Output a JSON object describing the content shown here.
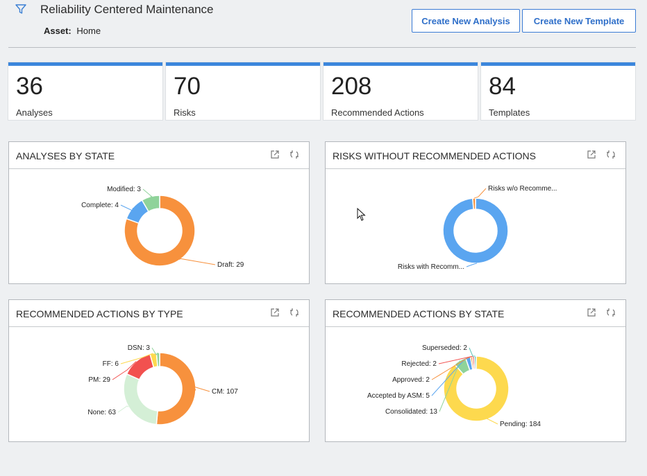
{
  "header": {
    "title": "Reliability Centered Maintenance",
    "asset_label": "Asset:",
    "asset_value": "Home",
    "create_analysis_label": "Create New Analysis",
    "create_template_label": "Create New Template"
  },
  "kpis": [
    {
      "value": "36",
      "label": "Analyses"
    },
    {
      "value": "70",
      "label": "Risks"
    },
    {
      "value": "208",
      "label": "Recommended Actions"
    },
    {
      "value": "84",
      "label": "Templates"
    }
  ],
  "colors": {
    "accent": "#3b86dc",
    "orange": "#f7913d",
    "blue": "#5aa5f0",
    "green": "#8fd39a",
    "red": "#f2514f",
    "yellow": "#fdd94e",
    "lightgreen": "#d4efd6",
    "teal": "#5cc2b6"
  },
  "chart_data": [
    {
      "type": "pie",
      "title": "ANALYSES BY STATE",
      "slices": [
        {
          "name": "Draft",
          "value": 29,
          "color": "#f7913d",
          "label": "Draft: 29"
        },
        {
          "name": "Complete",
          "value": 4,
          "color": "#5aa5f0",
          "label": "Complete: 4"
        },
        {
          "name": "Modified",
          "value": 3,
          "color": "#8fd39a",
          "label": "Modified: 3"
        }
      ]
    },
    {
      "type": "pie",
      "title": "RISKS WITHOUT RECOMMENDED ACTIONS",
      "slices": [
        {
          "name": "Risks with Recomm...",
          "value": 69,
          "color": "#5aa5f0",
          "label": "Risks with Recomm..."
        },
        {
          "name": "Risks w/o Recomme...",
          "value": 1,
          "color": "#f7913d",
          "label": "Risks w/o Recomme..."
        }
      ]
    },
    {
      "type": "pie",
      "title": "RECOMMENDED ACTIONS BY TYPE",
      "slices": [
        {
          "name": "CM",
          "value": 107,
          "color": "#f7913d",
          "label": "CM: 107"
        },
        {
          "name": "None",
          "value": 63,
          "color": "#d4efd6",
          "label": "None: 63"
        },
        {
          "name": "PM",
          "value": 29,
          "color": "#f2514f",
          "label": "PM: 29"
        },
        {
          "name": "FF",
          "value": 6,
          "color": "#fdd94e",
          "label": "FF: 6"
        },
        {
          "name": "DSN",
          "value": 3,
          "color": "#8fd39a",
          "label": "DSN: 3"
        }
      ]
    },
    {
      "type": "pie",
      "title": "RECOMMENDED ACTIONS BY STATE",
      "slices": [
        {
          "name": "Pending",
          "value": 184,
          "color": "#fdd94e",
          "label": "Pending: 184"
        },
        {
          "name": "Consolidated",
          "value": 13,
          "color": "#8fd39a",
          "label": "Consolidated: 13"
        },
        {
          "name": "Accepted by ASM",
          "value": 5,
          "color": "#5aa5f0",
          "label": "Accepted by ASM: 5"
        },
        {
          "name": "Approved",
          "value": 2,
          "color": "#f7913d",
          "label": "Approved: 2"
        },
        {
          "name": "Rejected",
          "value": 2,
          "color": "#f2514f",
          "label": "Rejected: 2"
        },
        {
          "name": "Superseded",
          "value": 2,
          "color": "#5cc2b6",
          "label": "Superseded: 2"
        }
      ]
    }
  ]
}
